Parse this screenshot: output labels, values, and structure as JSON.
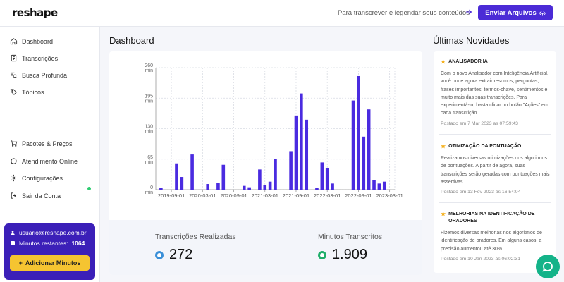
{
  "header": {
    "logo": "reshape",
    "promo_text": "Para transcrever e legendar seus conteúdos",
    "upload_button": "Enviar Arquivos"
  },
  "sidebar": {
    "items": [
      {
        "label": "Dashboard",
        "icon": "home-icon"
      },
      {
        "label": "Transcrições",
        "icon": "document-icon"
      },
      {
        "label": "Busca Profunda",
        "icon": "search-document-icon"
      },
      {
        "label": "Tópicos",
        "icon": "tags-icon"
      },
      {
        "label": "Pacotes & Preços",
        "icon": "cart-icon"
      },
      {
        "label": "Atendimento Online",
        "icon": "chat-icon"
      },
      {
        "label": "Configurações",
        "icon": "gear-icon"
      },
      {
        "label": "Sair da Conta",
        "icon": "logout-icon"
      }
    ],
    "online_status_color": "#2ecc71",
    "user": {
      "email": "usuario@reshape.com.br",
      "minutes_label": "Minutos restantes:",
      "minutes_value": "1064",
      "add_button": "Adicionar Minutos"
    }
  },
  "main": {
    "title": "Dashboard",
    "stats": [
      {
        "label": "Transcrições Realizadas",
        "value": "272",
        "icon": "check-icon",
        "color": "#3a8fd8"
      },
      {
        "label": "Minutos Transcritos",
        "value": "1.909",
        "icon": "clock-icon",
        "color": "#1fae6a"
      }
    ]
  },
  "news": {
    "title": "Últimas Novidades",
    "items": [
      {
        "title": "ANALISADOR IA",
        "body": "Com o novo Analisador com Inteligência Artificial, você pode agora extrair resumos, perguntas, frases importantes, termos-chave, sentimentos e muito mais das suas transcrições. Para experimentá-lo, basta clicar no botão \"Ações\" em cada transcrição.",
        "date": "Postado em 7 Mar 2023 as 07:59:43"
      },
      {
        "title": "OTIMIZAÇÃO DA PONTUAÇÃO",
        "body": "Realizamos diversas otimizações nos algoritmos de pontuações. A partir de agora, suas transcrições serão geradas com pontuações mais assertivas.",
        "date": "Postado em 13 Fev 2023 as 16:54:04"
      },
      {
        "title": "MELHORIAS NA IDENTIFICAÇÃO DE ORADORES",
        "body": "Fizemos diversas melhorias nos algoritmos de identificação de oradores. Em alguns casos, a precisão aumentou até 30%.",
        "date": "Postado em 10 Jan 2023 as 06:02:31"
      }
    ]
  },
  "colors": {
    "accent": "#4b2bd6",
    "bar": "#4a2be0",
    "user_card": "#3b1fb8",
    "add_button": "#f5c431",
    "chat": "#14b389"
  },
  "chart_data": {
    "type": "bar",
    "y_tick_labels": [
      "0 min",
      "65 min",
      "130 min",
      "195 min",
      "260 min"
    ],
    "ylim": [
      0,
      260
    ],
    "x_tick_labels": [
      "2019-09-01",
      "2020-03-01",
      "2020-09-01",
      "2021-03-01",
      "2021-09-01",
      "2022-03-01",
      "2022-09-01",
      "2023-03-01"
    ],
    "grid": true,
    "series": [
      {
        "x": [
          "2019-07",
          "2019-10",
          "2019-11",
          "2020-01",
          "2020-04",
          "2020-06",
          "2020-07",
          "2020-11",
          "2020-12",
          "2021-02",
          "2021-03",
          "2021-04",
          "2021-05",
          "2021-08",
          "2021-09",
          "2021-10",
          "2021-11",
          "2022-01",
          "2022-02",
          "2022-03",
          "2022-04",
          "2022-08",
          "2022-09",
          "2022-10",
          "2022-11",
          "2022-12",
          "2023-01",
          "2023-02"
        ],
        "values": [
          3,
          56,
          27,
          75,
          12,
          15,
          53,
          8,
          5,
          43,
          10,
          17,
          65,
          82,
          158,
          205,
          149,
          3,
          58,
          46,
          13,
          190,
          242,
          113,
          171,
          21,
          13,
          17
        ]
      }
    ]
  }
}
